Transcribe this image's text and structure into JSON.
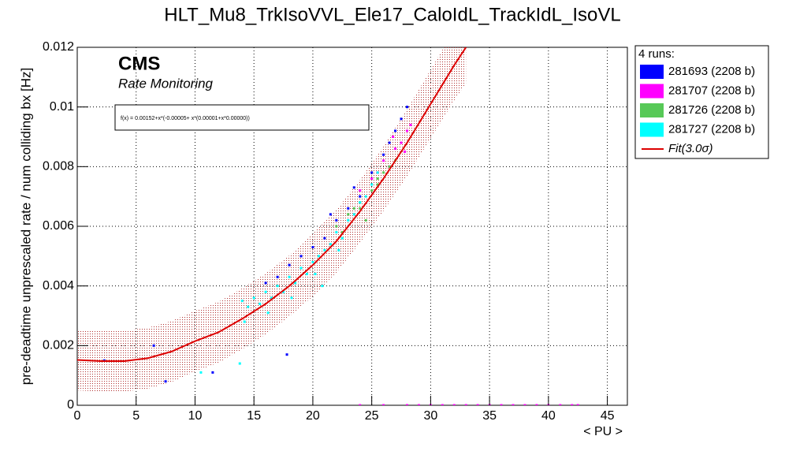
{
  "chart_data": {
    "type": "scatter",
    "title": "HLT_Mu8_TrkIsoVVL_Ele17_CaloIdL_TrackIdL_IsoVL",
    "experiment": "CMS",
    "subtitle": "Rate Monitoring",
    "formula": "f(x) = 0.00152+x*(-0.00005+ x*(0.00001+x*0.00000))",
    "x_label": "< PU >",
    "y_label": "pre-deadtime unprescaled rate / num colliding bx [Hz]",
    "legend_title": "4 runs:",
    "xlim": [
      0,
      46.7
    ],
    "ylim": [
      0,
      0.012
    ],
    "xticks": [
      0,
      5,
      10,
      15,
      20,
      25,
      30,
      35,
      40,
      45
    ],
    "yticks": [
      0,
      0.002,
      0.004,
      0.006,
      0.008,
      0.01,
      0.012
    ],
    "grid": true,
    "series": [
      {
        "name": "281693 (2208 b)",
        "color": "#0000ff",
        "x": [
          2.3,
          6.5,
          7.5,
          11.5,
          16,
          17,
          18,
          19,
          20,
          21,
          22,
          23,
          24,
          25,
          26,
          27,
          28,
          17.8,
          21.5,
          23.5,
          26.5,
          27.5
        ],
        "values": [
          0.0015,
          0.002,
          0.0008,
          0.0011,
          0.0041,
          0.0043,
          0.0047,
          0.005,
          0.0053,
          0.0056,
          0.0062,
          0.0066,
          0.007,
          0.0078,
          0.0084,
          0.0092,
          0.01,
          0.0017,
          0.0064,
          0.0073,
          0.0088,
          0.0096
        ]
      },
      {
        "name": "281707 (2208 b)",
        "color": "#ff00ff",
        "x": [
          24,
          25,
          26,
          26.5,
          27,
          27.5,
          28,
          28.3,
          26.8,
          27.8,
          25.5,
          24,
          26,
          28,
          29,
          30,
          31,
          32,
          33,
          34,
          35,
          36,
          37,
          38,
          39,
          40,
          41,
          42,
          42.5
        ],
        "values": [
          0.0072,
          0.0076,
          0.0082,
          0.008,
          0.0086,
          0.0088,
          0.0092,
          0.0094,
          0.009,
          0.0085,
          0.0078,
          0,
          0,
          0,
          0,
          0,
          0,
          0,
          0,
          0,
          0,
          0,
          0,
          0,
          0,
          0,
          0,
          0,
          0
        ]
      },
      {
        "name": "281726 (2208 b)",
        "color": "#57c957",
        "x": [
          22,
          22.5,
          23,
          23.5,
          24,
          24.5,
          25,
          25.5,
          26,
          26.5,
          27,
          24,
          25.5
        ],
        "values": [
          0.006,
          0.0058,
          0.0064,
          0.0066,
          0.0068,
          0.0062,
          0.0072,
          0.0074,
          0.0078,
          0.008,
          0.0082,
          0.0066,
          0.0076
        ]
      },
      {
        "name": "281727 (2208 b)",
        "color": "#00ffff",
        "x": [
          14,
          14.5,
          15,
          15.5,
          16,
          16.5,
          17,
          17.5,
          18,
          18.5,
          19,
          19.5,
          20,
          20.5,
          21,
          21.5,
          22,
          22.5,
          23,
          23.5,
          24,
          24.5,
          25,
          25.5,
          14.2,
          16.2,
          18.2,
          20.2,
          22.2,
          10.5,
          13.8,
          20.8
        ],
        "values": [
          0.0035,
          0.0033,
          0.0036,
          0.0034,
          0.0038,
          0.0036,
          0.004,
          0.0038,
          0.0043,
          0.0041,
          0.0046,
          0.0044,
          0.0048,
          0.005,
          0.0052,
          0.0054,
          0.0058,
          0.0056,
          0.0062,
          0.0064,
          0.0068,
          0.007,
          0.0074,
          0.0078,
          0.0028,
          0.0031,
          0.0036,
          0.0044,
          0.0052,
          0.0011,
          0.0014,
          0.004
        ]
      }
    ],
    "fit": {
      "name": "Fit(3.0σ)",
      "color": "#dd0000",
      "x": [
        0,
        2,
        4,
        6,
        8,
        10,
        12,
        14,
        16,
        18,
        20,
        22,
        24,
        26,
        28,
        30,
        32,
        33
      ],
      "values": [
        0.00152,
        0.00148,
        0.00148,
        0.00158,
        0.0018,
        0.00215,
        0.00245,
        0.0029,
        0.0034,
        0.004,
        0.0047,
        0.0055,
        0.0065,
        0.0076,
        0.0088,
        0.0101,
        0.0114,
        0.012
      ],
      "lower": [
        0.0005,
        0.00046,
        0.00046,
        0.00056,
        0.00078,
        0.00113,
        0.00143,
        0.00188,
        0.00238,
        0.00298,
        0.00365,
        0.00445,
        0.00545,
        0.00652,
        0.00768,
        0.00895,
        0.01022,
        0.0108
      ],
      "upper": [
        0.00254,
        0.0025,
        0.0025,
        0.0026,
        0.00282,
        0.00317,
        0.00347,
        0.00392,
        0.00442,
        0.00502,
        0.00575,
        0.00655,
        0.00755,
        0.00868,
        0.00992,
        0.01125,
        0.01258,
        0.0132
      ]
    }
  }
}
